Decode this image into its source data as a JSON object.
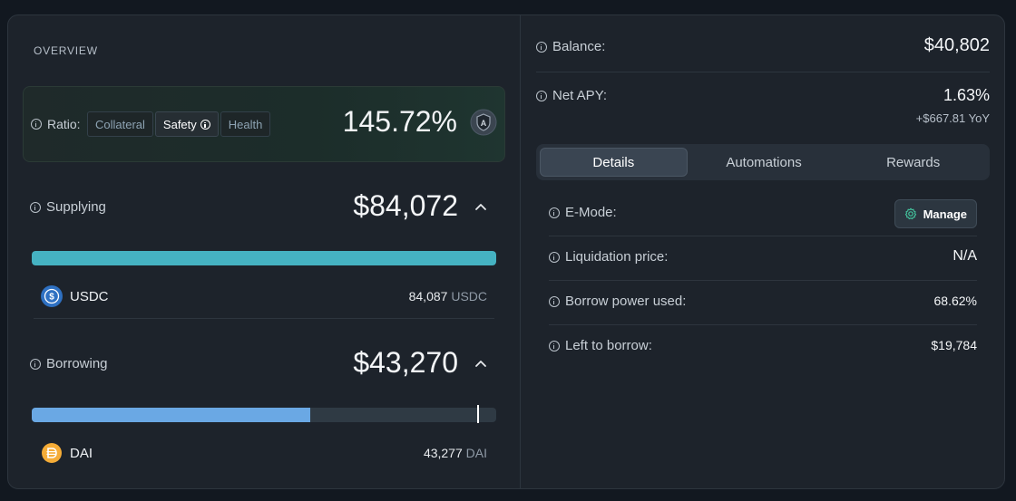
{
  "overview": {
    "title": "OVERVIEW",
    "ratio": {
      "label": "Ratio:",
      "options": [
        "Collateral",
        "Safety",
        "Health"
      ],
      "selected": "Safety",
      "value": "145.72%",
      "badge_letter": "A"
    },
    "supplying": {
      "label": "Supplying",
      "amount": "$84,072",
      "bar_fill_fraction": 1.0,
      "bar_color": "#45b2c2",
      "asset": {
        "symbol": "USDC",
        "amount": "84,087",
        "unit": "USDC",
        "icon": "usdc-coin-icon"
      }
    },
    "borrowing": {
      "label": "Borrowing",
      "amount": "$43,270",
      "bar_fill_fraction": 0.6,
      "bar_limit_fraction": 0.96,
      "bar_color": "#6aa8e4",
      "asset": {
        "symbol": "DAI",
        "amount": "43,277",
        "unit": "DAI",
        "icon": "dai-coin-icon"
      }
    }
  },
  "summary": {
    "balance_label": "Balance:",
    "balance_value": "$40,802",
    "net_apy_label": "Net APY:",
    "net_apy_value": "1.63%",
    "net_apy_yoy": "+$667.81 YoY"
  },
  "tabs": [
    "Details",
    "Automations",
    "Rewards"
  ],
  "active_tab": "Details",
  "details": {
    "emode_label": "E-Mode:",
    "manage_label": "Manage",
    "liquidation_label": "Liquidation price:",
    "liquidation_value": "N/A",
    "borrow_power_label": "Borrow power used:",
    "borrow_power_value": "68.62%",
    "left_to_borrow_label": "Left to borrow:",
    "left_to_borrow_value": "$19,784"
  }
}
